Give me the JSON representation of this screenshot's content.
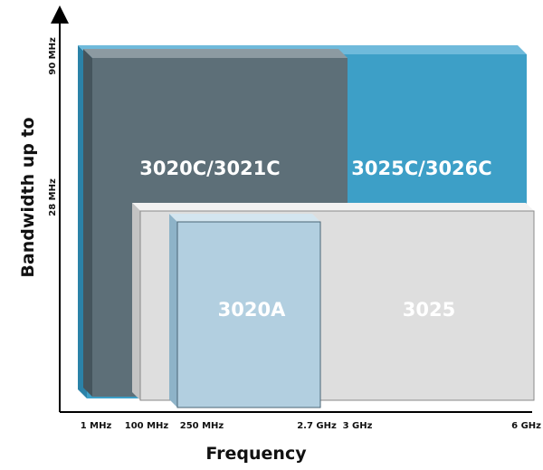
{
  "y_axis": {
    "title": "Bandwidth up to",
    "ticks": [
      "90 MHz",
      "28 MHz"
    ]
  },
  "x_axis": {
    "title": "Frequency",
    "ticks": [
      "1 MHz",
      "100 MHz",
      "250 MHz",
      "2.7 GHz",
      "3 GHz",
      "6 GHz"
    ]
  },
  "boxes": {
    "b3025c": {
      "label": "3025C/3026C",
      "color": "#3d9fc7"
    },
    "b3020c": {
      "label": "3020C/3021C",
      "color": "#5d6f78"
    },
    "b3025": {
      "label": "3025",
      "color": "#dedede"
    },
    "b3020a": {
      "label": "3020A",
      "color": "#b2cfe0"
    }
  }
}
